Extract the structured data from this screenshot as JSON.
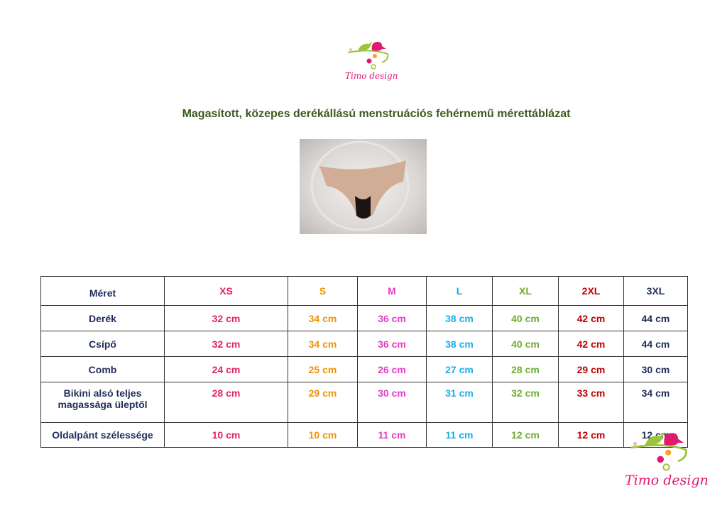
{
  "brand": "Timo design",
  "title": "Magasított, közepes derékállású menstruációs fehérnemű mérettáblázat",
  "colors": {
    "XS": "#e2206a",
    "S": "#f39200",
    "M": "#e83cc4",
    "L": "#1aaee6",
    "XL": "#6cae2e",
    "2XL": "#c00000",
    "3XL": "#1f2d5a",
    "label": "#1f2d5a",
    "title": "#3b5a1f"
  },
  "table": {
    "header": [
      "Méret",
      "XS",
      "S",
      "M",
      "L",
      "XL",
      "2XL",
      "3XL"
    ],
    "rows": [
      [
        "Derék",
        "32 cm",
        "34 cm",
        "36 cm",
        "38 cm",
        "40 cm",
        "42 cm",
        "44 cm"
      ],
      [
        "Csípő",
        "32 cm",
        "34 cm",
        "36 cm",
        "38 cm",
        "40 cm",
        "42 cm",
        "44 cm"
      ],
      [
        "Comb",
        "24 cm",
        "25 cm",
        "26 cm",
        "27 cm",
        "28 cm",
        "29 cm",
        "30 cm"
      ],
      [
        "Bikini alsó teljes magassága üleptől",
        "28 cm",
        "29 cm",
        "30 cm",
        "31 cm",
        "32 cm",
        "33 cm",
        "34 cm"
      ],
      [
        "Oldalpánt szélessége",
        "10 cm",
        "10 cm",
        "11 cm",
        "11 cm",
        "12 cm",
        "12 cm",
        "12 cm"
      ]
    ]
  }
}
